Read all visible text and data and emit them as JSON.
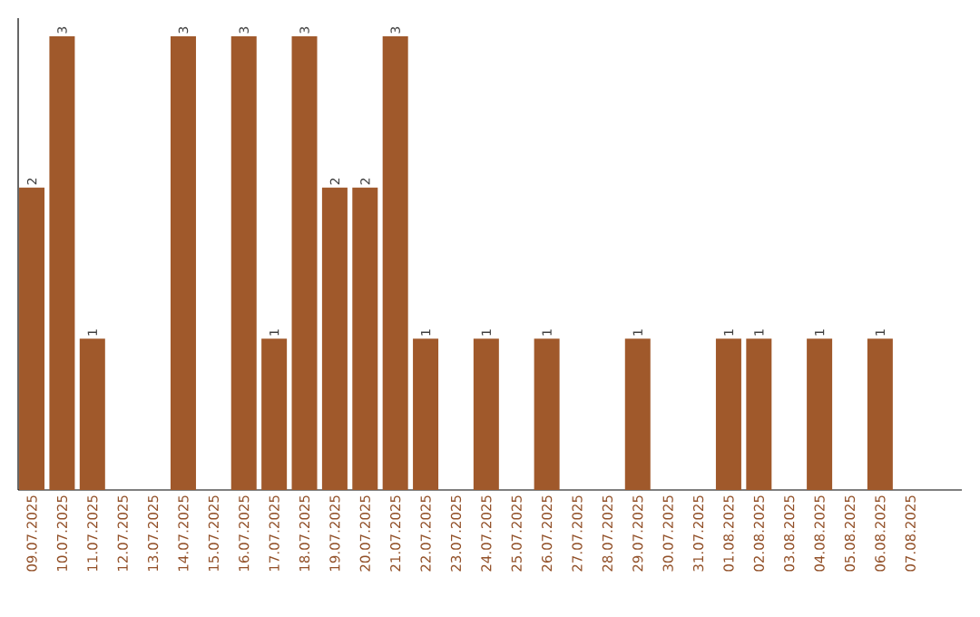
{
  "chart_data": {
    "type": "bar",
    "categories": [
      "09.07.2025",
      "10.07.2025",
      "11.07.2025",
      "12.07.2025",
      "13.07.2025",
      "14.07.2025",
      "15.07.2025",
      "16.07.2025",
      "17.07.2025",
      "18.07.2025",
      "19.07.2025",
      "20.07.2025",
      "21.07.2025",
      "22.07.2025",
      "23.07.2025",
      "24.07.2025",
      "25.07.2025",
      "26.07.2025",
      "27.07.2025",
      "28.07.2025",
      "29.07.2025",
      "30.07.2025",
      "31.07.2025",
      "01.08.2025",
      "02.08.2025",
      "03.08.2025",
      "04.08.2025",
      "05.08.2025",
      "06.08.2025",
      "07.08.2025"
    ],
    "values": [
      2,
      3,
      1,
      0,
      0,
      3,
      0,
      3,
      1,
      3,
      2,
      2,
      3,
      1,
      0,
      1,
      0,
      1,
      0,
      0,
      1,
      0,
      0,
      1,
      1,
      0,
      1,
      0,
      1,
      0
    ],
    "value_labels": [
      "2",
      "3",
      "1",
      null,
      null,
      "3",
      null,
      "3",
      "1",
      "3",
      "2",
      "2",
      "3",
      "1",
      null,
      "1",
      null,
      "1",
      null,
      null,
      "1",
      null,
      null,
      "1",
      "1",
      null,
      "1",
      null,
      "1",
      null
    ],
    "color": "#a0592b",
    "ylim": [
      0,
      3.12
    ],
    "tick_labels": "x"
  }
}
